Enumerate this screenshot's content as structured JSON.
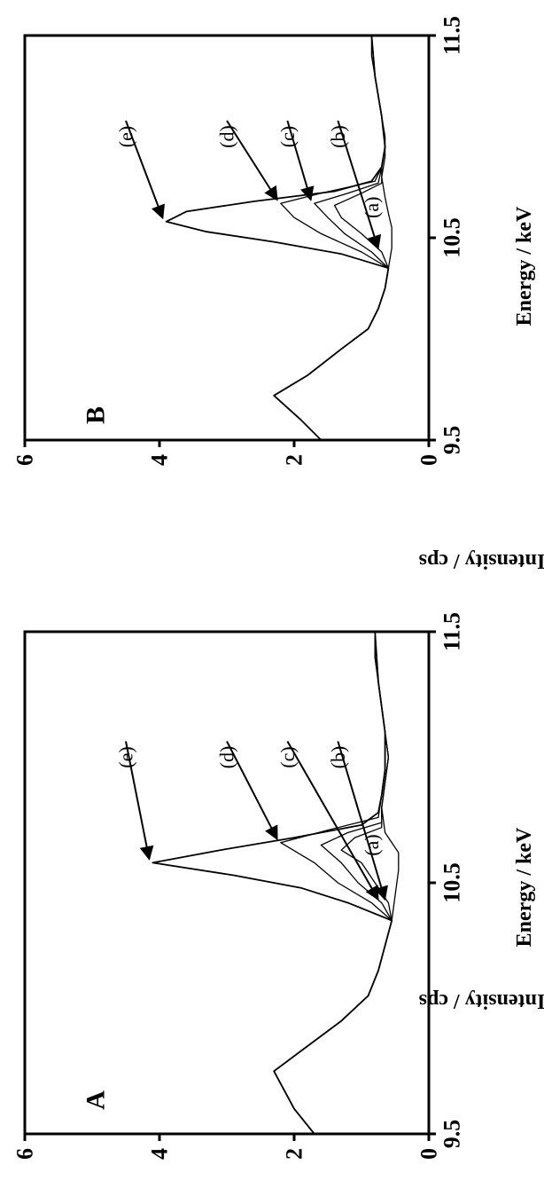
{
  "figure": {
    "panel_a": "A",
    "panel_b": "B",
    "xlabel": "Energy / keV",
    "ylabel": "Intensity / cps"
  },
  "chart_data": [
    {
      "type": "line",
      "panel": "A",
      "xlabel": "Energy / keV",
      "ylabel": "Intensity / cps",
      "xlim": [
        9.5,
        11.5
      ],
      "ylim": [
        0,
        6
      ],
      "x_ticks": [
        "9.5",
        "10.5",
        "11.5"
      ],
      "y_ticks": [
        "0",
        "2",
        "4",
        "6"
      ],
      "series_labels": [
        "(a)",
        "(b)",
        "(c)",
        "(d)",
        "(e)"
      ],
      "series": [
        {
          "name": "(a)",
          "points": [
            [
              9.5,
              1.7
            ],
            [
              9.6,
              2.0
            ],
            [
              9.75,
              2.3
            ],
            [
              9.85,
              1.8
            ],
            [
              9.95,
              1.3
            ],
            [
              10.05,
              0.9
            ],
            [
              10.15,
              0.75
            ],
            [
              10.25,
              0.65
            ],
            [
              10.35,
              0.55
            ],
            [
              10.45,
              0.5
            ],
            [
              10.55,
              0.45
            ],
            [
              10.62,
              0.45
            ],
            [
              10.7,
              0.65
            ],
            [
              10.8,
              0.7
            ],
            [
              10.9,
              0.65
            ],
            [
              11.0,
              0.6
            ],
            [
              11.1,
              0.65
            ],
            [
              11.2,
              0.7
            ],
            [
              11.3,
              0.75
            ],
            [
              11.4,
              0.8
            ],
            [
              11.5,
              0.8
            ]
          ]
        },
        {
          "name": "(b)",
          "points": [
            [
              9.5,
              1.7
            ],
            [
              9.6,
              2.0
            ],
            [
              9.75,
              2.3
            ],
            [
              9.85,
              1.8
            ],
            [
              9.95,
              1.3
            ],
            [
              10.05,
              0.9
            ],
            [
              10.15,
              0.75
            ],
            [
              10.25,
              0.65
            ],
            [
              10.35,
              0.55
            ],
            [
              10.42,
              0.6
            ],
            [
              10.5,
              0.8
            ],
            [
              10.58,
              1.0
            ],
            [
              10.63,
              1.3
            ],
            [
              10.68,
              1.1
            ],
            [
              10.72,
              0.7
            ],
            [
              10.8,
              0.7
            ],
            [
              10.9,
              0.65
            ],
            [
              11.0,
              0.6
            ],
            [
              11.2,
              0.7
            ],
            [
              11.4,
              0.8
            ],
            [
              11.5,
              0.8
            ]
          ]
        },
        {
          "name": "(c)",
          "points": [
            [
              9.5,
              1.7
            ],
            [
              9.6,
              2.0
            ],
            [
              9.75,
              2.3
            ],
            [
              9.85,
              1.8
            ],
            [
              9.95,
              1.3
            ],
            [
              10.05,
              0.9
            ],
            [
              10.15,
              0.75
            ],
            [
              10.25,
              0.65
            ],
            [
              10.35,
              0.55
            ],
            [
              10.42,
              0.7
            ],
            [
              10.5,
              1.05
            ],
            [
              10.58,
              1.3
            ],
            [
              10.65,
              1.6
            ],
            [
              10.7,
              1.2
            ],
            [
              10.74,
              0.7
            ],
            [
              10.8,
              0.7
            ],
            [
              10.9,
              0.65
            ],
            [
              11.0,
              0.6
            ],
            [
              11.2,
              0.7
            ],
            [
              11.4,
              0.8
            ],
            [
              11.5,
              0.8
            ]
          ]
        },
        {
          "name": "(d)",
          "points": [
            [
              9.5,
              1.7
            ],
            [
              9.6,
              2.0
            ],
            [
              9.75,
              2.3
            ],
            [
              9.85,
              1.8
            ],
            [
              9.95,
              1.3
            ],
            [
              10.05,
              0.9
            ],
            [
              10.15,
              0.75
            ],
            [
              10.25,
              0.65
            ],
            [
              10.35,
              0.55
            ],
            [
              10.42,
              0.85
            ],
            [
              10.5,
              1.35
            ],
            [
              10.58,
              1.7
            ],
            [
              10.66,
              2.2
            ],
            [
              10.71,
              1.5
            ],
            [
              10.76,
              0.75
            ],
            [
              10.85,
              0.7
            ],
            [
              10.95,
              0.65
            ],
            [
              11.1,
              0.65
            ],
            [
              11.3,
              0.75
            ],
            [
              11.5,
              0.8
            ]
          ]
        },
        {
          "name": "(e)",
          "points": [
            [
              9.5,
              1.7
            ],
            [
              9.6,
              2.0
            ],
            [
              9.75,
              2.3
            ],
            [
              9.85,
              1.8
            ],
            [
              9.95,
              1.3
            ],
            [
              10.05,
              0.9
            ],
            [
              10.15,
              0.75
            ],
            [
              10.25,
              0.65
            ],
            [
              10.35,
              0.55
            ],
            [
              10.42,
              1.2
            ],
            [
              10.48,
              1.9
            ],
            [
              10.53,
              2.9
            ],
            [
              10.58,
              4.1
            ],
            [
              10.63,
              3.1
            ],
            [
              10.68,
              2.0
            ],
            [
              10.73,
              1.0
            ],
            [
              10.78,
              0.75
            ],
            [
              10.85,
              0.7
            ],
            [
              10.95,
              0.65
            ],
            [
              11.1,
              0.65
            ],
            [
              11.3,
              0.75
            ],
            [
              11.5,
              0.8
            ]
          ]
        }
      ]
    },
    {
      "type": "line",
      "panel": "B",
      "xlabel": "Energy / keV",
      "ylabel": "Intensity / cps",
      "xlim": [
        9.5,
        11.5
      ],
      "ylim": [
        0,
        6
      ],
      "x_ticks": [
        "9.5",
        "10.5",
        "11.5"
      ],
      "y_ticks": [
        "0",
        "2",
        "4",
        "6"
      ],
      "series_labels": [
        "(a)",
        "(b)",
        "(c)",
        "(d)",
        "(e)"
      ],
      "series": [
        {
          "name": "(a)",
          "points": [
            [
              9.5,
              1.6
            ],
            [
              9.6,
              1.9
            ],
            [
              9.72,
              2.3
            ],
            [
              9.82,
              1.8
            ],
            [
              9.95,
              1.3
            ],
            [
              10.05,
              0.9
            ],
            [
              10.15,
              0.75
            ],
            [
              10.25,
              0.65
            ],
            [
              10.35,
              0.6
            ],
            [
              10.45,
              0.55
            ],
            [
              10.55,
              0.55
            ],
            [
              10.62,
              0.6
            ],
            [
              10.7,
              0.65
            ],
            [
              10.8,
              0.7
            ],
            [
              10.9,
              0.65
            ],
            [
              11.0,
              0.65
            ],
            [
              11.1,
              0.7
            ],
            [
              11.2,
              0.75
            ],
            [
              11.3,
              0.8
            ],
            [
              11.4,
              0.85
            ],
            [
              11.5,
              0.85
            ]
          ]
        },
        {
          "name": "(b)",
          "points": [
            [
              9.5,
              1.6
            ],
            [
              9.6,
              1.9
            ],
            [
              9.72,
              2.3
            ],
            [
              9.82,
              1.8
            ],
            [
              9.95,
              1.3
            ],
            [
              10.05,
              0.9
            ],
            [
              10.15,
              0.75
            ],
            [
              10.25,
              0.65
            ],
            [
              10.35,
              0.6
            ],
            [
              10.43,
              0.7
            ],
            [
              10.52,
              1.0
            ],
            [
              10.6,
              1.3
            ],
            [
              10.66,
              1.4
            ],
            [
              10.72,
              1.0
            ],
            [
              10.77,
              0.7
            ],
            [
              10.85,
              0.7
            ],
            [
              10.95,
              0.65
            ],
            [
              11.1,
              0.7
            ],
            [
              11.3,
              0.8
            ],
            [
              11.5,
              0.85
            ]
          ]
        },
        {
          "name": "(c)",
          "points": [
            [
              9.5,
              1.6
            ],
            [
              9.6,
              1.9
            ],
            [
              9.72,
              2.3
            ],
            [
              9.82,
              1.8
            ],
            [
              9.95,
              1.3
            ],
            [
              10.05,
              0.9
            ],
            [
              10.15,
              0.75
            ],
            [
              10.25,
              0.65
            ],
            [
              10.35,
              0.6
            ],
            [
              10.43,
              0.85
            ],
            [
              10.52,
              1.25
            ],
            [
              10.6,
              1.5
            ],
            [
              10.67,
              1.7
            ],
            [
              10.72,
              1.2
            ],
            [
              10.77,
              0.75
            ],
            [
              10.85,
              0.7
            ],
            [
              10.95,
              0.65
            ],
            [
              11.1,
              0.7
            ],
            [
              11.3,
              0.8
            ],
            [
              11.5,
              0.85
            ]
          ]
        },
        {
          "name": "(d)",
          "points": [
            [
              9.5,
              1.6
            ],
            [
              9.6,
              1.9
            ],
            [
              9.72,
              2.3
            ],
            [
              9.82,
              1.8
            ],
            [
              9.95,
              1.3
            ],
            [
              10.05,
              0.9
            ],
            [
              10.15,
              0.75
            ],
            [
              10.25,
              0.65
            ],
            [
              10.35,
              0.6
            ],
            [
              10.43,
              1.0
            ],
            [
              10.52,
              1.6
            ],
            [
              10.6,
              2.0
            ],
            [
              10.67,
              2.2
            ],
            [
              10.72,
              1.6
            ],
            [
              10.78,
              0.8
            ],
            [
              10.85,
              0.7
            ],
            [
              10.95,
              0.65
            ],
            [
              11.1,
              0.7
            ],
            [
              11.3,
              0.8
            ],
            [
              11.5,
              0.85
            ]
          ]
        },
        {
          "name": "(e)",
          "points": [
            [
              9.5,
              1.6
            ],
            [
              9.6,
              1.9
            ],
            [
              9.72,
              2.3
            ],
            [
              9.82,
              1.8
            ],
            [
              9.95,
              1.3
            ],
            [
              10.05,
              0.9
            ],
            [
              10.15,
              0.75
            ],
            [
              10.25,
              0.65
            ],
            [
              10.35,
              0.6
            ],
            [
              10.42,
              1.3
            ],
            [
              10.48,
              2.3
            ],
            [
              10.53,
              3.3
            ],
            [
              10.58,
              3.9
            ],
            [
              10.63,
              3.6
            ],
            [
              10.68,
              2.6
            ],
            [
              10.73,
              1.4
            ],
            [
              10.78,
              0.85
            ],
            [
              10.85,
              0.7
            ],
            [
              10.95,
              0.65
            ],
            [
              11.1,
              0.7
            ],
            [
              11.3,
              0.8
            ],
            [
              11.5,
              0.85
            ]
          ]
        }
      ]
    }
  ]
}
